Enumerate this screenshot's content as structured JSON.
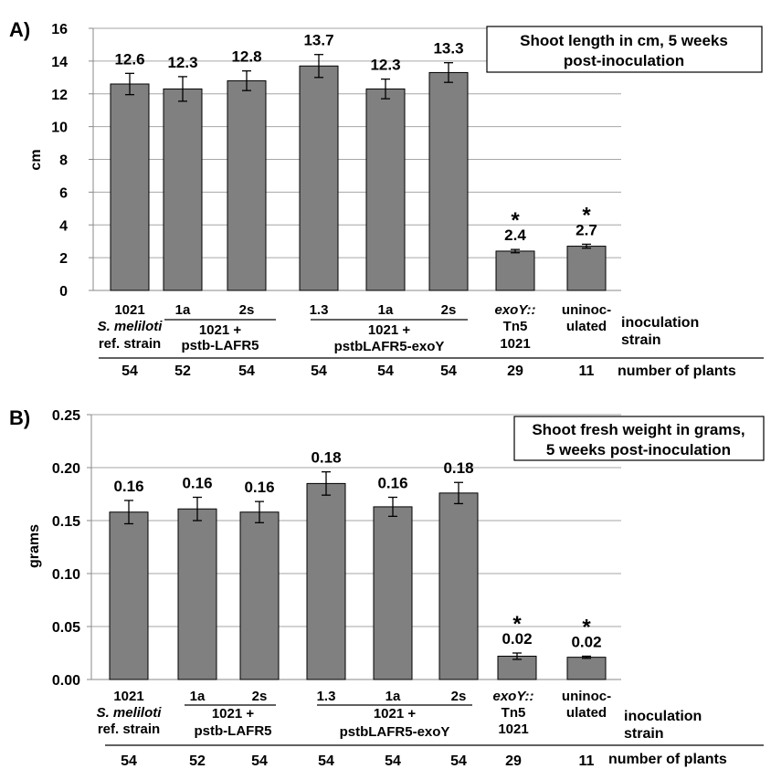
{
  "chart_data": [
    {
      "type": "bar",
      "panel_label": "A)",
      "title": [
        "Shoot length in cm, 5 weeks",
        "post-inoculation"
      ],
      "ylabel": "cm",
      "ylim": [
        0,
        16
      ],
      "yticks": [
        "0",
        "2",
        "4",
        "6",
        "8",
        "10",
        "12",
        "14",
        "16"
      ],
      "grid": true,
      "legend": "none",
      "bar_color": "#808080",
      "values": [
        12.6,
        12.3,
        12.8,
        13.7,
        12.3,
        13.3,
        2.4,
        2.7
      ],
      "errors": [
        0.65,
        0.75,
        0.6,
        0.7,
        0.6,
        0.6,
        0.1,
        0.12
      ],
      "value_labels": [
        "12.6",
        "12.3",
        "12.8",
        "13.7",
        "12.3",
        "13.3",
        "2.4",
        "2.7"
      ],
      "significance": [
        "",
        "",
        "",
        "",
        "",
        "",
        "*",
        "*"
      ],
      "tick_labels": [
        "1021",
        "1a",
        "2s",
        "1.3",
        "1a",
        "2s",
        "exoY::",
        "uninoc-"
      ],
      "category_sub_labels": {
        "ref": [
          "S. meliloti",
          "ref. strain"
        ],
        "exoy": [
          "Tn5",
          "1021"
        ],
        "uninoc": [
          "ulated"
        ]
      },
      "groups": [
        {
          "lines": [
            "1021 +",
            "pstb-LAFR5"
          ]
        },
        {
          "lines": [
            "1021 +",
            "pstbLAFR5-exoY"
          ]
        }
      ],
      "strain_label": [
        "inoculation",
        "strain"
      ],
      "plants_label": "number of plants",
      "plants": [
        "54",
        "52",
        "54",
        "54",
        "54",
        "54",
        "29",
        "11"
      ]
    },
    {
      "type": "bar",
      "panel_label": "B)",
      "title": [
        "Shoot fresh weight in grams,",
        "5 weeks post-inoculation"
      ],
      "ylabel": "grams",
      "ylim": [
        0,
        0.25
      ],
      "yticks": [
        "0.00",
        "0.05",
        "0.10",
        "0.15",
        "0.20",
        "0.25"
      ],
      "grid": true,
      "legend": "none",
      "bar_color": "#808080",
      "values": [
        0.158,
        0.161,
        0.158,
        0.185,
        0.163,
        0.176,
        0.022,
        0.021
      ],
      "errors": [
        0.011,
        0.011,
        0.01,
        0.011,
        0.009,
        0.01,
        0.003,
        0.001
      ],
      "value_labels": [
        "0.16",
        "0.16",
        "0.16",
        "0.18",
        "0.16",
        "0.18",
        "0.02",
        "0.02"
      ],
      "significance": [
        "",
        "",
        "",
        "",
        "",
        "",
        "*",
        "*"
      ],
      "tick_labels": [
        "1021",
        "1a",
        "2s",
        "1.3",
        "1a",
        "2s",
        "exoY::",
        "uninoc-"
      ],
      "category_sub_labels": {
        "ref": [
          "S. meliloti",
          "ref. strain"
        ],
        "exoy": [
          "Tn5",
          "1021"
        ],
        "uninoc": [
          "ulated"
        ]
      },
      "groups": [
        {
          "lines": [
            "1021 +",
            "pstb-LAFR5"
          ]
        },
        {
          "lines": [
            "1021 +",
            "pstbLAFR5-exoY"
          ]
        }
      ],
      "strain_label": [
        "inoculation",
        "strain"
      ],
      "plants_label": "number of plants",
      "plants": [
        "54",
        "52",
        "54",
        "54",
        "54",
        "54",
        "29",
        "11"
      ]
    }
  ]
}
